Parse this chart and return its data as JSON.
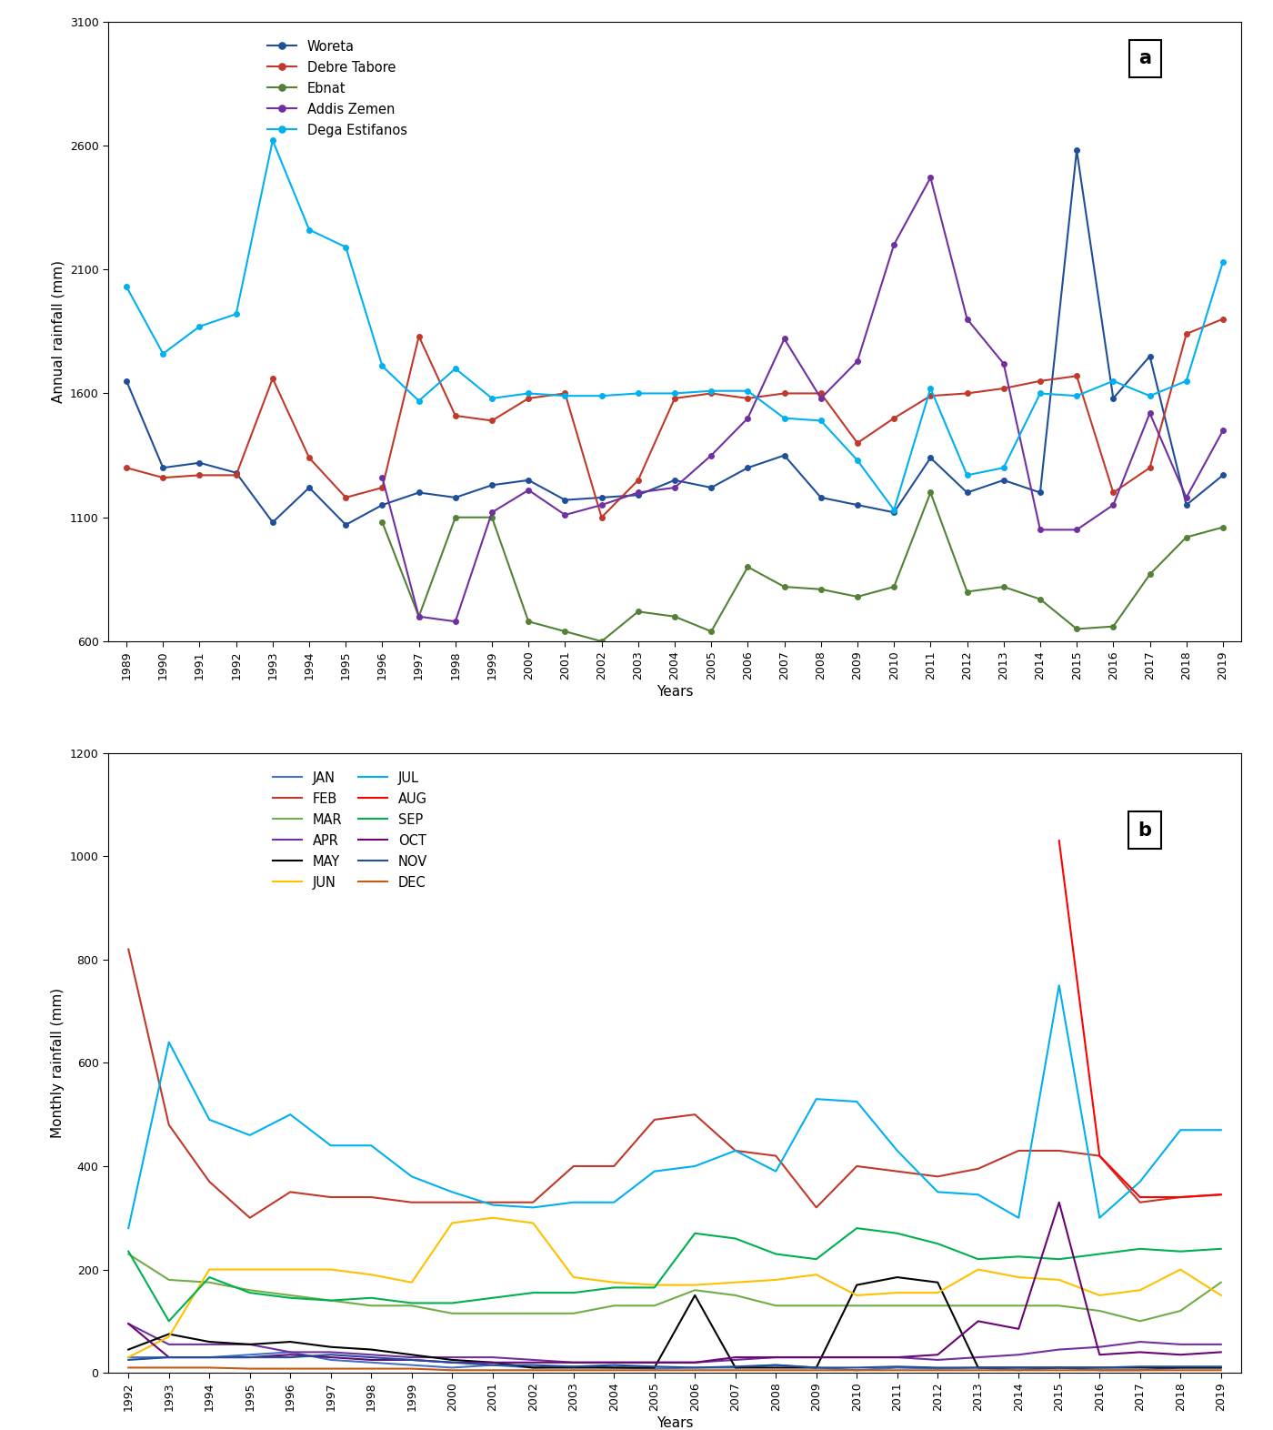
{
  "panel_a": {
    "years": [
      1989,
      1990,
      1991,
      1992,
      1993,
      1994,
      1995,
      1996,
      1997,
      1998,
      1999,
      2000,
      2001,
      2002,
      2003,
      2004,
      2005,
      2006,
      2007,
      2008,
      2009,
      2010,
      2011,
      2012,
      2013,
      2014,
      2015,
      2016,
      2017,
      2018,
      2019
    ],
    "Woreta": [
      1650,
      1300,
      1320,
      1280,
      1080,
      1220,
      1070,
      1150,
      1200,
      1180,
      1230,
      1250,
      1170,
      1180,
      1190,
      1250,
      1220,
      1300,
      1350,
      1180,
      1150,
      1120,
      1340,
      1200,
      1250,
      1200,
      2580,
      1580,
      1750,
      1150,
      1270
    ],
    "DebreTabore": [
      1300,
      1260,
      1270,
      1270,
      1660,
      1340,
      1180,
      1220,
      1830,
      1510,
      1490,
      1580,
      1600,
      1100,
      1250,
      1580,
      1600,
      1580,
      1600,
      1600,
      1400,
      1500,
      1590,
      1600,
      1620,
      1650,
      1670,
      1200,
      1300,
      1840,
      1900
    ],
    "Ebnat": [
      null,
      null,
      null,
      null,
      null,
      null,
      null,
      1080,
      700,
      1100,
      1100,
      680,
      640,
      600,
      720,
      700,
      640,
      900,
      820,
      810,
      780,
      820,
      1200,
      800,
      820,
      770,
      650,
      660,
      870,
      1020,
      1060
    ],
    "AddisZemen": [
      null,
      null,
      null,
      null,
      null,
      null,
      null,
      1260,
      700,
      680,
      1120,
      1210,
      1110,
      1150,
      1200,
      1220,
      1350,
      1500,
      1820,
      1580,
      1730,
      2200,
      2470,
      1900,
      1720,
      1050,
      1050,
      1150,
      1520,
      1180,
      1450
    ],
    "DegaEstifanos": [
      2030,
      1760,
      1870,
      1920,
      2620,
      2260,
      2190,
      1710,
      1570,
      1700,
      1580,
      1600,
      1590,
      1590,
      1600,
      1600,
      1610,
      1610,
      1500,
      1490,
      1330,
      1130,
      1620,
      1270,
      1300,
      1600,
      1590,
      1650,
      1590,
      1650,
      2130
    ],
    "colors": {
      "Woreta": "#1f4e9a",
      "DebreTabore": "#c0392b",
      "Ebnat": "#538135",
      "AddisZemen": "#7030a0",
      "DegaEstifanos": "#00b0f0"
    },
    "legend_labels": {
      "Woreta": "Woreta",
      "DebreTabore": "Debre Tabore",
      "Ebnat": "Ebnat",
      "AddisZemen": "Addis Zemen",
      "DegaEstifanos": "Dega Estifanos"
    },
    "ylabel": "Annual rainfall (mm)",
    "xlabel": "Years",
    "ylim": [
      600,
      3100
    ],
    "ytick_vals": [
      600,
      1100,
      1600,
      2100,
      2600,
      3100
    ],
    "label_a": "a"
  },
  "panel_b": {
    "years": [
      1992,
      1993,
      1994,
      1995,
      1996,
      1997,
      1998,
      1999,
      2000,
      2001,
      2002,
      2003,
      2004,
      2005,
      2006,
      2007,
      2008,
      2009,
      2010,
      2011,
      2012,
      2013,
      2014,
      2015,
      2016,
      2017,
      2018,
      2019
    ],
    "JAN": [
      30,
      30,
      30,
      35,
      40,
      25,
      20,
      15,
      10,
      15,
      10,
      12,
      10,
      8,
      10,
      10,
      15,
      10,
      5,
      10,
      8,
      10,
      5,
      10,
      5,
      5,
      10,
      10
    ],
    "FEB": [
      820,
      480,
      370,
      300,
      350,
      340,
      340,
      330,
      330,
      330,
      330,
      400,
      400,
      490,
      500,
      430,
      420,
      320,
      400,
      390,
      380,
      395,
      430,
      430,
      420,
      330,
      340,
      345
    ],
    "MAR": [
      230,
      180,
      175,
      160,
      150,
      140,
      130,
      130,
      115,
      115,
      115,
      115,
      130,
      130,
      160,
      150,
      130,
      130,
      130,
      130,
      130,
      130,
      130,
      130,
      120,
      100,
      120,
      175
    ],
    "APR": [
      95,
      55,
      55,
      55,
      40,
      40,
      35,
      30,
      30,
      30,
      25,
      20,
      20,
      20,
      20,
      25,
      30,
      30,
      30,
      30,
      25,
      30,
      35,
      45,
      50,
      60,
      55,
      55
    ],
    "MAY": [
      45,
      75,
      60,
      55,
      60,
      50,
      45,
      35,
      25,
      20,
      10,
      10,
      10,
      10,
      150,
      10,
      10,
      10,
      170,
      185,
      175,
      10,
      10,
      10,
      10,
      10,
      10,
      10
    ],
    "JUN": [
      30,
      70,
      200,
      200,
      200,
      200,
      190,
      175,
      290,
      300,
      290,
      185,
      175,
      170,
      170,
      175,
      180,
      190,
      150,
      155,
      155,
      200,
      185,
      180,
      150,
      160,
      200,
      150
    ],
    "JUL": [
      280,
      640,
      490,
      460,
      500,
      440,
      440,
      380,
      350,
      325,
      320,
      330,
      330,
      390,
      400,
      430,
      390,
      530,
      525,
      430,
      350,
      345,
      300,
      750,
      300,
      370,
      470,
      470
    ],
    "AUG": [
      null,
      null,
      null,
      null,
      null,
      null,
      null,
      null,
      null,
      null,
      null,
      null,
      null,
      null,
      null,
      null,
      null,
      null,
      null,
      null,
      null,
      null,
      null,
      1030,
      420,
      340,
      340,
      345
    ],
    "SEP": [
      235,
      100,
      185,
      155,
      145,
      140,
      145,
      135,
      135,
      145,
      155,
      155,
      165,
      165,
      270,
      260,
      230,
      220,
      280,
      270,
      250,
      220,
      225,
      220,
      230,
      240,
      235,
      240
    ],
    "OCT": [
      95,
      30,
      30,
      30,
      35,
      30,
      25,
      25,
      20,
      20,
      20,
      20,
      20,
      20,
      20,
      30,
      30,
      30,
      30,
      30,
      35,
      100,
      85,
      330,
      35,
      40,
      35,
      40
    ],
    "NOV": [
      25,
      30,
      30,
      30,
      30,
      35,
      30,
      25,
      20,
      15,
      15,
      12,
      15,
      12,
      10,
      12,
      15,
      10,
      10,
      12,
      10,
      10,
      10,
      10,
      10,
      12,
      12,
      12
    ],
    "DEC": [
      10,
      10,
      10,
      8,
      8,
      8,
      8,
      8,
      5,
      5,
      5,
      5,
      5,
      5,
      5,
      5,
      5,
      5,
      5,
      5,
      5,
      5,
      5,
      5,
      5,
      5,
      5,
      5
    ],
    "colors": {
      "JAN": "#4472c4",
      "FEB": "#c0392b",
      "MAR": "#70ad47",
      "APR": "#7030a0",
      "MAY": "#000000",
      "JUN": "#ffc000",
      "JUL": "#00b0f0",
      "AUG": "#ff0000",
      "SEP": "#00b050",
      "OCT": "#6a0572",
      "NOV": "#1f4e9a",
      "DEC": "#c55a11"
    },
    "legend_order": [
      "JAN",
      "FEB",
      "MAR",
      "APR",
      "MAY",
      "JUN",
      "JUL",
      "AUG",
      "SEP",
      "OCT",
      "NOV",
      "DEC"
    ],
    "ylabel": "Monthly rainfall (mm)",
    "xlabel": "Years",
    "ylim": [
      0,
      1200
    ],
    "ytick_vals": [
      0,
      200,
      400,
      600,
      800,
      1000,
      1200
    ],
    "label_b": "b"
  }
}
